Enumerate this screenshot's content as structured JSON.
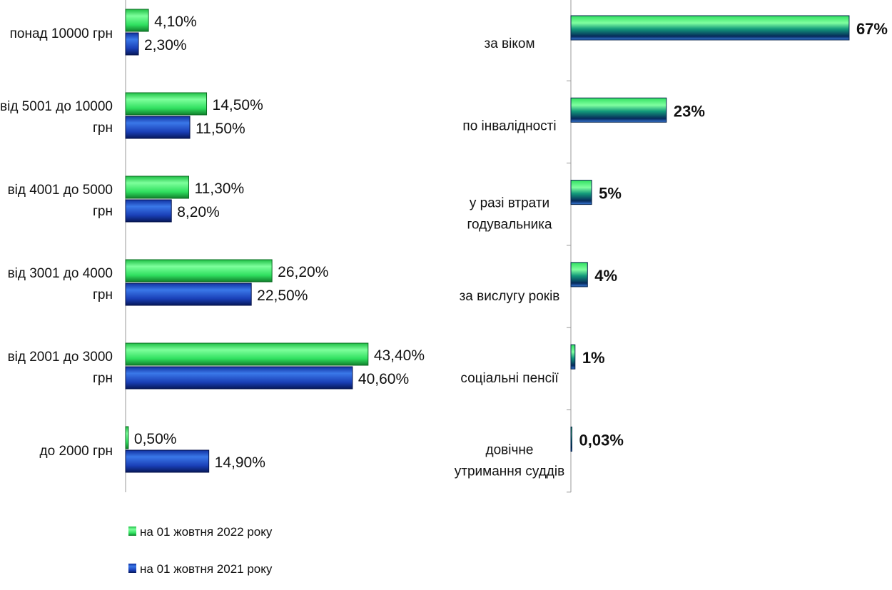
{
  "chart_data": [
    {
      "type": "bar",
      "orientation": "horizontal",
      "categories": [
        "понад 10000 грн",
        "від 5001 до 10000 грн",
        "від 4001 до 5000 грн",
        "від 3001 до 4000 грн",
        "від 2001 до 3000 грн",
        "до 2000 грн"
      ],
      "series": [
        {
          "name": "на 01 жовтня 2022 року",
          "color": "#2fe05a",
          "values": [
            4.1,
            14.5,
            11.3,
            26.2,
            43.4,
            0.5
          ],
          "labels": [
            "4,10%",
            "14,50%",
            "11,30%",
            "26,20%",
            "43,40%",
            "0,50%"
          ]
        },
        {
          "name": "на 01 жовтня 2021 року",
          "color": "#1a3fb0",
          "values": [
            2.3,
            11.5,
            8.2,
            22.5,
            40.6,
            14.9
          ],
          "labels": [
            "2,30%",
            "11,50%",
            "8,20%",
            "22,50%",
            "40,60%",
            "14,90%"
          ]
        }
      ],
      "legend": "bottom-left",
      "grid": false
    },
    {
      "type": "bar",
      "orientation": "horizontal",
      "categories": [
        [
          "за віком"
        ],
        [
          "по інвалідності"
        ],
        [
          "у разі втрати",
          "годувальника"
        ],
        [
          "за вислугу років"
        ],
        [
          "соціальні пенсії"
        ],
        [
          "довічне",
          "утримання суддів"
        ]
      ],
      "values": [
        67,
        23,
        5,
        4,
        1,
        0.03
      ],
      "labels": [
        "67%",
        "23%",
        "5%",
        "4%",
        "1%",
        "0,03%"
      ],
      "colors": {
        "top": "#3cf07a",
        "bottom": "#062a5a"
      },
      "grid": false
    }
  ]
}
